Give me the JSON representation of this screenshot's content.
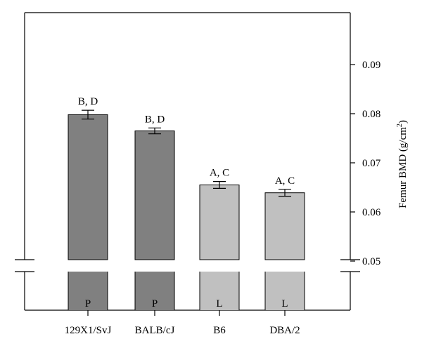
{
  "chart_data": {
    "type": "bar",
    "categories": [
      "129X1/SvJ",
      "BALB/cJ",
      "B6",
      "DBA/2"
    ],
    "values": [
      0.0798,
      0.0765,
      0.0655,
      0.0639
    ],
    "errors": [
      0.0009,
      0.0006,
      0.0007,
      0.0007
    ],
    "group_letters": [
      "P",
      "P",
      "L",
      "L"
    ],
    "annotations": [
      "B, D",
      "B, D",
      "A, C",
      "A, C"
    ],
    "bar_colors": [
      "#808080",
      "#808080",
      "#c0c0c0",
      "#c0c0c0"
    ],
    "ylabel": "Femur BMD (g/cm",
    "ylabel_superscript": "2",
    "ylabel_close": ")",
    "yticks": [
      0.05,
      0.06,
      0.07,
      0.08,
      0.09
    ],
    "ytick_labels": [
      "0.05",
      "0.06",
      "0.07",
      "0.08",
      "0.09"
    ],
    "ylim": [
      0.05,
      0.1
    ],
    "axis_break": true,
    "axis_side": "right",
    "grid": false,
    "legend": "none"
  }
}
